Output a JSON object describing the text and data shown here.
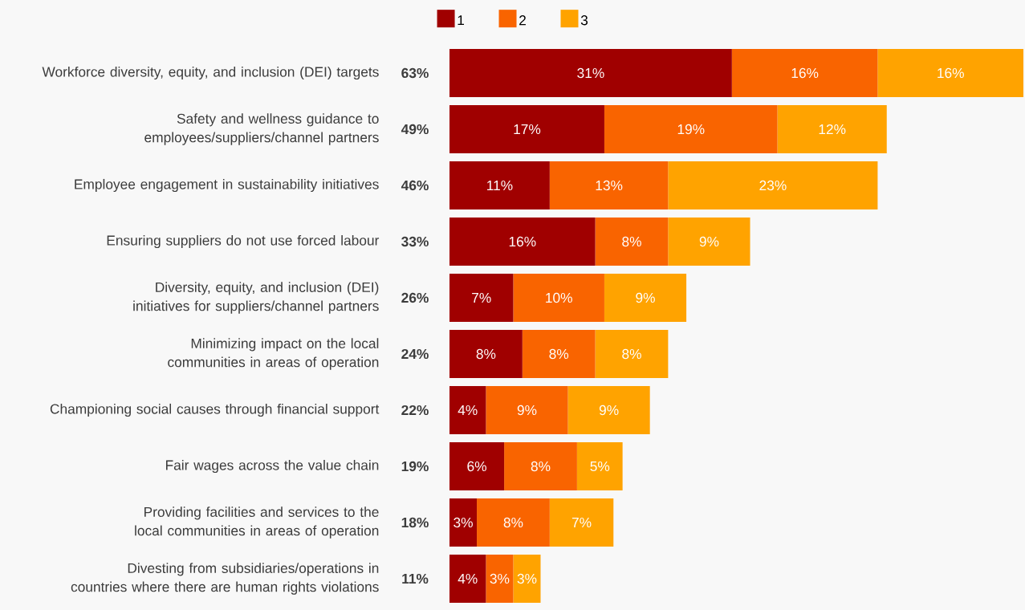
{
  "chart_data": {
    "type": "bar",
    "orientation": "horizontal",
    "stacked": true,
    "legend": "top",
    "categories": [
      "Workforce diversity, equity, and inclusion (DEI) targets",
      "Safety and wellness guidance to employees/suppliers/channel partners",
      "Employee engagement in sustainability initiatives",
      "Ensuring suppliers do not use forced labour",
      "Diversity, equity, and inclusion (DEI) initiatives for suppliers/channel partners",
      "Minimizing impact on the local communities in areas of operation",
      "Championing social causes through financial support",
      "Fair wages across the value chain",
      "Providing facilities and services to the local communities in areas of operation",
      "Divesting from subsidiaries/operations in countries where there are human rights violations"
    ],
    "series": [
      {
        "name": "1",
        "color": "#a00000",
        "values": [
          31,
          17,
          11,
          16,
          7,
          8,
          4,
          6,
          3,
          4
        ],
        "value_labels": [
          "31%",
          "17%",
          "11%",
          "16%",
          "7%",
          "8%",
          "4%",
          "6%",
          "3%",
          "4%"
        ]
      },
      {
        "name": "2",
        "color": "#f96400",
        "values": [
          16,
          19,
          13,
          8,
          10,
          8,
          9,
          8,
          8,
          3
        ],
        "value_labels": [
          "16%",
          "19%",
          "13%",
          "8%",
          "10%",
          "8%",
          "9%",
          "8%",
          "8%",
          "3%"
        ]
      },
      {
        "name": "3",
        "color": "#ffa300",
        "values": [
          16,
          12,
          23,
          9,
          9,
          8,
          9,
          5,
          7,
          3
        ],
        "value_labels": [
          "16%",
          "12%",
          "23%",
          "9%",
          "9%",
          "8%",
          "9%",
          "5%",
          "7%",
          "3%"
        ]
      }
    ],
    "totals": [
      "63%",
      "49%",
      "46%",
      "33%",
      "26%",
      "24%",
      "22%",
      "19%",
      "18%",
      "11%"
    ]
  }
}
